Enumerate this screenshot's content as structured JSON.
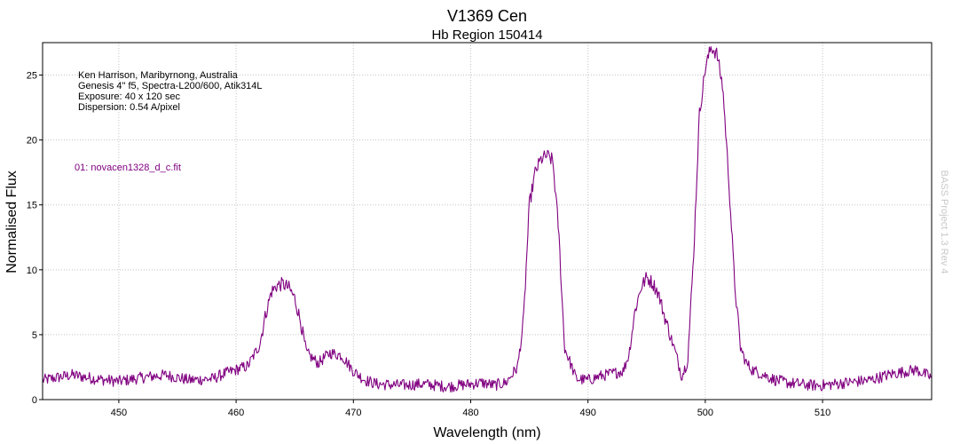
{
  "chart_data": {
    "type": "line",
    "title": "V1369 Cen",
    "subtitle": "Hb Region 150414",
    "xlabel": "Wavelength (nm)",
    "ylabel": "Normalised Flux",
    "xlim": [
      443.5,
      519.3
    ],
    "ylim": [
      0,
      27.5
    ],
    "x_ticks": [
      450,
      460,
      470,
      480,
      490,
      500,
      510
    ],
    "y_ticks": [
      0,
      5,
      10,
      15,
      20,
      25
    ],
    "grid": true,
    "annotations": [
      "Ken Harrison, Maribyrnong, Australia",
      "Genesis 4\" f5, Spectra-L200/600, Atik314L",
      "Exposure: 40 x 120 sec",
      "Dispersion: 0.54 A/pixel"
    ],
    "watermark": "BASS Project 1.3 Rev 4",
    "series": [
      {
        "name": "01: novacen1328_d_c.fit",
        "color": "#800080",
        "x": [
          443.5,
          446,
          448,
          450,
          452,
          454,
          456,
          458,
          459,
          460,
          461,
          462,
          462.5,
          463,
          463.5,
          464,
          464.5,
          465,
          465.5,
          466,
          467,
          468,
          469,
          470,
          471,
          472,
          474,
          476,
          478,
          480,
          481,
          482,
          483,
          484,
          484.5,
          485,
          485.5,
          486,
          486.5,
          487,
          487.5,
          488,
          489,
          490,
          491,
          492,
          493,
          493.5,
          494,
          494.5,
          495,
          495.5,
          496,
          496.5,
          497,
          497.5,
          498,
          498.5,
          499,
          499.5,
          500,
          500.5,
          501,
          501.5,
          502,
          502.5,
          503,
          503.5,
          504,
          505,
          506,
          507,
          508,
          509,
          510,
          512,
          514,
          516,
          518,
          519.3
        ],
        "y": [
          1.5,
          1.9,
          1.6,
          1.4,
          1.7,
          1.9,
          1.5,
          1.6,
          2.0,
          2.3,
          2.6,
          4.2,
          6.5,
          8.3,
          8.8,
          8.9,
          8.6,
          7.8,
          6.0,
          3.6,
          2.8,
          3.6,
          3.4,
          2.2,
          1.5,
          1.2,
          1.1,
          1.2,
          1.0,
          1.2,
          1.3,
          1.1,
          1.3,
          2.5,
          6.0,
          15.0,
          17.5,
          18.5,
          18.8,
          18.4,
          13.0,
          4.0,
          1.6,
          1.5,
          1.8,
          2.0,
          2.2,
          3.5,
          6.8,
          8.6,
          9.4,
          9.0,
          8.2,
          6.5,
          5.0,
          3.5,
          1.8,
          3.0,
          11.0,
          22.0,
          25.5,
          27.2,
          26.6,
          24.0,
          17.0,
          9.0,
          4.0,
          2.8,
          2.3,
          1.9,
          1.5,
          1.3,
          1.2,
          1.1,
          1.1,
          1.3,
          1.5,
          2.0,
          2.3,
          1.7
        ]
      }
    ]
  }
}
